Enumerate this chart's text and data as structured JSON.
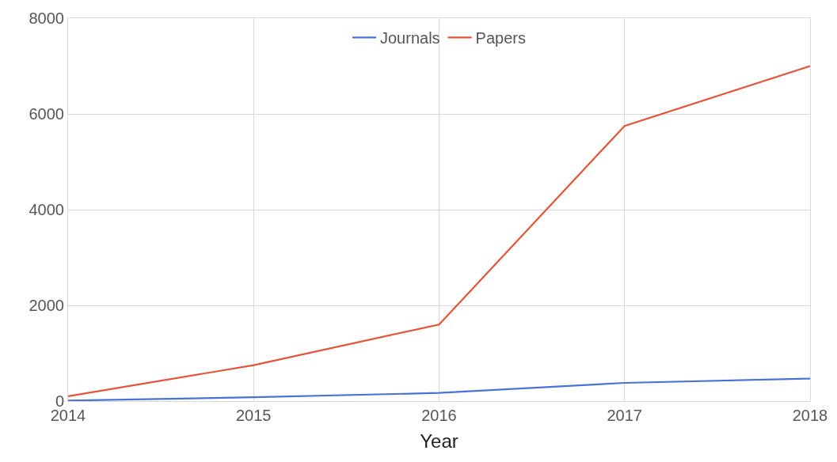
{
  "chart_data": {
    "type": "line",
    "xlabel": "Year",
    "x": [
      2014,
      2015,
      2016,
      2017,
      2018
    ],
    "series": [
      {
        "name": "Journals",
        "color": "#4a72d6",
        "values": [
          10,
          80,
          170,
          380,
          470
        ]
      },
      {
        "name": "Papers",
        "color": "#e2553a",
        "values": [
          100,
          750,
          1600,
          5750,
          7000
        ]
      }
    ],
    "xlim": [
      2014,
      2018
    ],
    "xticks": [
      2014,
      2015,
      2016,
      2017,
      2018
    ],
    "ylim": [
      0,
      8000
    ],
    "yticks": [
      0,
      2000,
      4000,
      6000,
      8000
    ],
    "grid": true,
    "legend": "top",
    "marker": "none",
    "line_style": "solid"
  }
}
